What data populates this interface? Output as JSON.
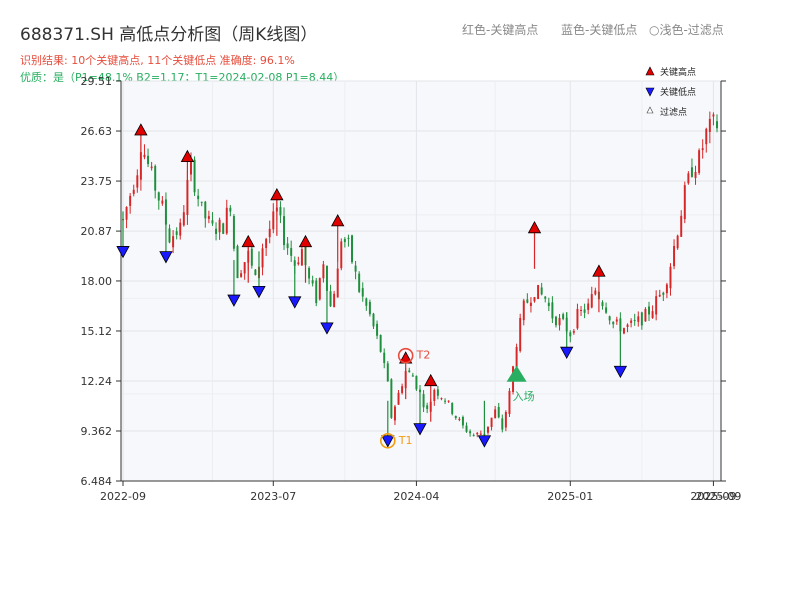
{
  "title": "688371.SH 高低点分析图（周K线图）",
  "subtitle1": "识别结果: 10个关键高点, 11个关键低点  准确度: 96.1%",
  "subtitle2": "优质：是（P1=48.1%  B2=1.17；T1=2024-02-08 P1=8.44）",
  "top_legend": {
    "red": "红色-关键高点",
    "blue": "蓝色-关键低点",
    "light": "○浅色-过滤点"
  },
  "colors": {
    "up": "#d62728",
    "down": "#1e8f3c",
    "high": "#e00000",
    "low": "#1a1aff",
    "t1": "#f39c12",
    "t2": "#e74c3c",
    "entry": "#27ae60"
  },
  "chart_data": {
    "type": "candlestick",
    "title": "688371.SH 高低点分析图（周K线图）",
    "y_ticks": [
      "6.484",
      "9.362",
      "12.24",
      "15.12",
      "18.00",
      "20.87",
      "23.75",
      "26.63",
      "29.51"
    ],
    "ylim": [
      6.484,
      29.51
    ],
    "x_ticks": [
      {
        "label": "2022-09",
        "week": 0
      },
      {
        "label": "2023-07",
        "week": 42
      },
      {
        "label": "2024-04",
        "week": 82
      },
      {
        "label": "2025-01",
        "week": 125
      },
      {
        "label": "2025-09",
        "week": 165
      }
    ],
    "x_end_overlap_label": "2025-09",
    "week_count": 167,
    "close_path": [
      [
        0,
        21.5
      ],
      [
        4,
        24.5
      ],
      [
        5,
        26.0
      ],
      [
        8,
        24.0
      ],
      [
        11,
        22.2
      ],
      [
        13,
        20.5
      ],
      [
        16,
        21.0
      ],
      [
        18,
        23.5
      ],
      [
        19,
        24.5
      ],
      [
        22,
        22.0
      ],
      [
        25,
        21.0
      ],
      [
        28,
        21.2
      ],
      [
        30,
        22.5
      ],
      [
        31,
        20.0
      ],
      [
        32,
        18.5
      ],
      [
        35,
        19.5
      ],
      [
        37,
        18.0
      ],
      [
        39,
        20.0
      ],
      [
        41,
        21.0
      ],
      [
        43,
        22.0
      ],
      [
        45,
        20.5
      ],
      [
        48,
        19.0
      ],
      [
        50,
        19.8
      ],
      [
        52,
        18.0
      ],
      [
        54,
        17.0
      ],
      [
        56,
        19.2
      ],
      [
        58,
        16.5
      ],
      [
        60,
        18.5
      ],
      [
        61,
        20.5
      ],
      [
        63,
        20.0
      ],
      [
        66,
        17.5
      ],
      [
        69,
        16.0
      ],
      [
        72,
        14.0
      ],
      [
        74,
        12.0
      ],
      [
        75,
        10.2
      ],
      [
        77,
        11.5
      ],
      [
        79,
        12.8
      ],
      [
        81,
        12.5
      ],
      [
        83,
        11.5
      ],
      [
        85,
        10.5
      ],
      [
        87,
        11.8
      ],
      [
        90,
        11.2
      ],
      [
        93,
        10.2
      ],
      [
        95,
        9.6
      ],
      [
        98,
        9.1
      ],
      [
        101,
        9.3
      ],
      [
        104,
        10.5
      ],
      [
        106,
        9.5
      ],
      [
        108,
        11.5
      ],
      [
        110,
        14.5
      ],
      [
        112,
        16.5
      ],
      [
        115,
        17.5
      ],
      [
        118,
        17.0
      ],
      [
        120,
        16.0
      ],
      [
        123,
        15.5
      ],
      [
        125,
        15.0
      ],
      [
        127,
        16.0
      ],
      [
        130,
        16.5
      ],
      [
        132,
        17.5
      ],
      [
        135,
        16.5
      ],
      [
        137,
        15.5
      ],
      [
        140,
        15.3
      ],
      [
        143,
        15.5
      ],
      [
        146,
        16.0
      ],
      [
        148,
        16.5
      ],
      [
        151,
        17.5
      ],
      [
        153,
        19.0
      ],
      [
        155,
        21.0
      ],
      [
        157,
        23.0
      ],
      [
        159,
        24.5
      ],
      [
        161,
        25.0
      ],
      [
        163,
        26.5
      ],
      [
        165,
        27.0
      ]
    ],
    "key_highs": [
      {
        "week": 5,
        "price": 26.63
      },
      {
        "week": 18,
        "price": 25.1
      },
      {
        "week": 35,
        "price": 20.2
      },
      {
        "week": 43,
        "price": 22.9
      },
      {
        "week": 51,
        "price": 20.2
      },
      {
        "week": 60,
        "price": 21.4
      },
      {
        "week": 79,
        "price": 13.5
      },
      {
        "week": 86,
        "price": 12.2
      },
      {
        "week": 115,
        "price": 21.0
      },
      {
        "week": 133,
        "price": 18.5
      }
    ],
    "key_lows": [
      {
        "week": 0,
        "price": 19.7
      },
      {
        "week": 12,
        "price": 19.4
      },
      {
        "week": 31,
        "price": 16.9
      },
      {
        "week": 38,
        "price": 17.4
      },
      {
        "week": 48,
        "price": 16.8
      },
      {
        "week": 57,
        "price": 15.3
      },
      {
        "week": 74,
        "price": 8.8
      },
      {
        "week": 83,
        "price": 9.5
      },
      {
        "week": 101,
        "price": 8.8
      },
      {
        "week": 124,
        "price": 13.9
      },
      {
        "week": 139,
        "price": 12.8
      }
    ],
    "annotations": [
      {
        "label": "T1",
        "week": 74,
        "price": 8.8
      },
      {
        "label": "T2",
        "week": 79,
        "price": 13.7
      },
      {
        "label": "入场",
        "week": 110,
        "price": 12.6
      }
    ],
    "legend": [
      "关键高点",
      "关键低点",
      "过滤点"
    ],
    "legend_placement": "top-right",
    "grid": true
  }
}
